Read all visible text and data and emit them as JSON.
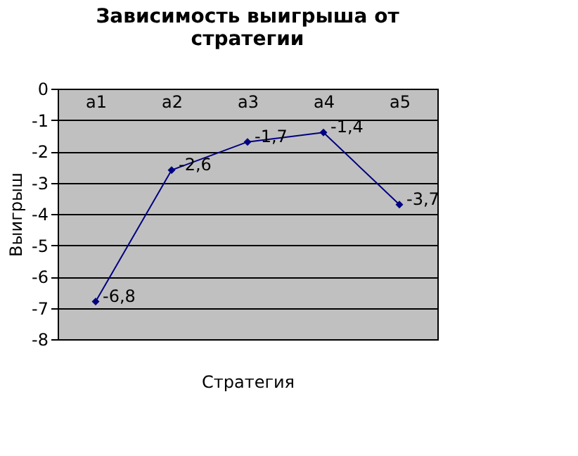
{
  "chart_data": {
    "type": "line",
    "title": "Зависимость выигрыша от стратегии",
    "xlabel": "Стратегия",
    "ylabel": "Выигрыш",
    "categories": [
      "a1",
      "a2",
      "a3",
      "a4",
      "a5"
    ],
    "series": [
      {
        "color": "#000080",
        "values": [
          -6.8,
          -2.6,
          -1.7,
          -1.4,
          -3.7
        ],
        "value_labels": [
          "-6,8",
          "-2,6",
          "-1,7",
          "-1,4",
          "-3,7"
        ]
      }
    ],
    "ylim": [
      -8,
      0
    ],
    "yticks": [
      -8,
      -7,
      -6,
      -5,
      -4,
      -3,
      -2,
      -1,
      0
    ],
    "grid": "y",
    "marker": "diamond",
    "line_style": "solid",
    "legend": false
  }
}
